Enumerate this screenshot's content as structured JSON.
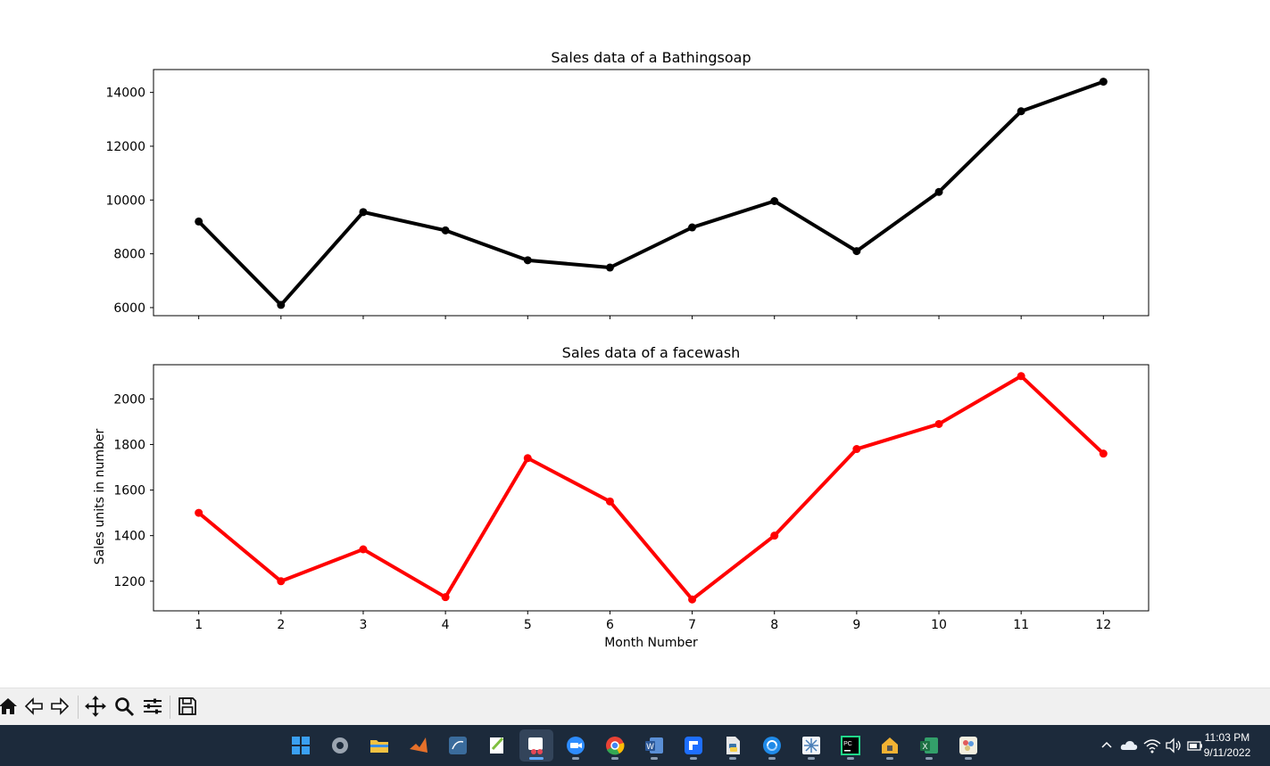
{
  "chart_data": [
    {
      "type": "line",
      "title": "Sales data of  a Bathingsoap",
      "xlabel": "",
      "ylabel": "",
      "x": [
        1,
        2,
        3,
        4,
        5,
        6,
        7,
        8,
        9,
        10,
        11,
        12
      ],
      "values": [
        9200,
        6100,
        9550,
        8870,
        7760,
        7490,
        8980,
        9960,
        8100,
        10300,
        13300,
        14400
      ],
      "ylim": [
        5700,
        14850
      ],
      "xlim": [
        0.45,
        12.55
      ],
      "yticks": [
        6000,
        8000,
        10000,
        12000,
        14000
      ],
      "xtick_labels_visible": false,
      "color": "#000000",
      "marker": "circle",
      "grid": false
    },
    {
      "type": "line",
      "title": "Sales data of  a facewash",
      "xlabel": "Month Number",
      "ylabel": "Sales units in number",
      "x": [
        1,
        2,
        3,
        4,
        5,
        6,
        7,
        8,
        9,
        10,
        11,
        12
      ],
      "values": [
        1500,
        1200,
        1340,
        1130,
        1740,
        1550,
        1120,
        1400,
        1780,
        1890,
        2100,
        1760
      ],
      "ylim": [
        1070,
        2150
      ],
      "xlim": [
        0.45,
        12.55
      ],
      "yticks": [
        1200,
        1400,
        1600,
        1800,
        2000
      ],
      "xticks": [
        "1",
        "2",
        "3",
        "4",
        "5",
        "6",
        "7",
        "8",
        "9",
        "10",
        "11",
        "12"
      ],
      "color": "#ff0000",
      "marker": "circle",
      "grid": false
    }
  ],
  "toolbar": {
    "buttons": [
      {
        "icon": "home-icon"
      },
      {
        "icon": "back-arrow-icon"
      },
      {
        "icon": "forward-arrow-icon"
      },
      {
        "icon": "pan-move-icon"
      },
      {
        "icon": "zoom-magnifier-icon"
      },
      {
        "icon": "configure-subplots-icon"
      },
      {
        "icon": "save-floppy-icon"
      }
    ]
  },
  "taskbar": {
    "apps": [
      {
        "icon": "windows-start-icon",
        "color": "#3aa0f3"
      },
      {
        "icon": "settings-gear-icon",
        "color": "#9aa4b0"
      },
      {
        "icon": "file-explorer-icon",
        "color": "#f4c242"
      },
      {
        "icon": "matlab-icon",
        "color": "#e5702a"
      },
      {
        "icon": "mysql-workbench-icon",
        "color": "#3b6c9c"
      },
      {
        "icon": "notepad-plus-icon",
        "color": "#7fbf3f"
      },
      {
        "icon": "snipping-tool-icon",
        "color": "#e74856",
        "active": true
      },
      {
        "icon": "zoom-icon",
        "color": "#2d8cff"
      },
      {
        "icon": "chrome-icon",
        "color": "#e94235"
      },
      {
        "icon": "word-icon",
        "color": "#2b5797"
      },
      {
        "icon": "wondershare-icon",
        "color": "#1e6fff"
      },
      {
        "icon": "python-file-icon",
        "color": "#f7d048"
      },
      {
        "icon": "edge-sync-icon",
        "color": "#1f8ae8"
      },
      {
        "icon": "snowflake-app-icon",
        "color": "#c8d6e8"
      },
      {
        "icon": "pycharm-icon",
        "color": "#21d789"
      },
      {
        "icon": "lock-house-icon",
        "color": "#f2b233"
      },
      {
        "icon": "excel-icon",
        "color": "#1d7044"
      },
      {
        "icon": "paint-icon",
        "color": "#d9c37a"
      }
    ],
    "tray_icons": [
      "chevron-up-icon",
      "onedrive-cloud-icon",
      "wifi-icon",
      "volume-icon",
      "battery-icon"
    ],
    "time": "11:03 PM",
    "date": "9/11/2022"
  }
}
